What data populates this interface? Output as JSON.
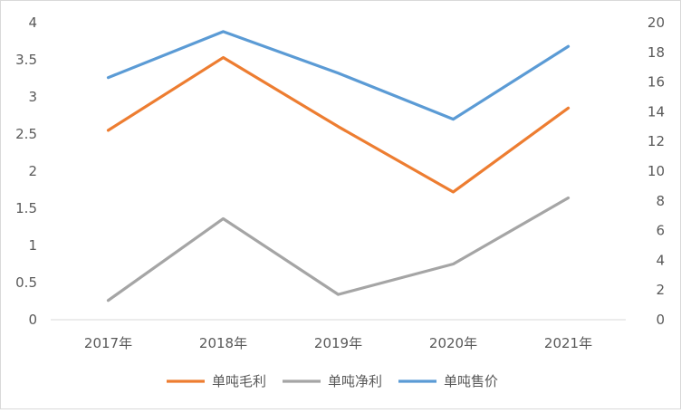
{
  "chart_data": {
    "type": "line",
    "categories": [
      "2017年",
      "2018年",
      "2019年",
      "2020年",
      "2021年"
    ],
    "y_left": {
      "ticks": [
        "0",
        "0.5",
        "1",
        "1.5",
        "2",
        "2.5",
        "3",
        "3.5",
        "4"
      ],
      "ylim": [
        0,
        4
      ]
    },
    "y_right": {
      "ticks": [
        "0",
        "2",
        "4",
        "6",
        "8",
        "10",
        "12",
        "14",
        "16",
        "18",
        "20"
      ],
      "ylim": [
        0,
        20
      ]
    },
    "series": [
      {
        "name": "单吨毛利",
        "axis": "left",
        "color": "#ED7D31",
        "values": [
          2.55,
          3.53,
          2.6,
          1.72,
          2.85
        ]
      },
      {
        "name": "单吨净利",
        "axis": "left",
        "color": "#A5A5A5",
        "values": [
          0.26,
          1.36,
          0.34,
          0.75,
          1.64
        ]
      },
      {
        "name": "单吨售价",
        "axis": "right",
        "color": "#5B9BD5",
        "values": [
          16.3,
          19.4,
          16.6,
          13.5,
          18.4
        ]
      }
    ],
    "grid": false,
    "legend_position": "bottom"
  }
}
